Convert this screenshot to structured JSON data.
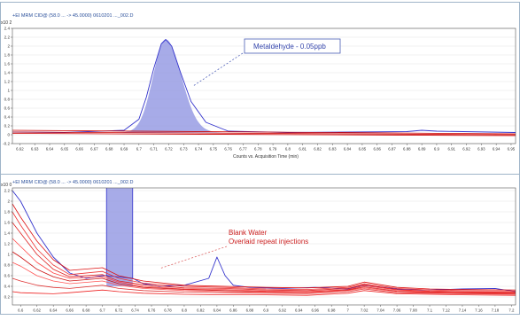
{
  "chart_data": [
    {
      "type": "area",
      "title": "+EI MRM CID@ (58.0 ... -> 45.0000) 0610201 ..._002.D",
      "xlabel": "Counts vs. Acquisition Time (min)",
      "ylabel": "",
      "y_multiplier": "x10 2",
      "ylim": [
        -0.2,
        2.4
      ],
      "xlim": [
        6.615,
        6.953
      ],
      "y_ticks": [
        "-0.2",
        "0",
        "0.2",
        "0.4",
        "0.6",
        "0.8",
        "1",
        "1.2",
        "1.4",
        "1.6",
        "1.8",
        "2",
        "2.2",
        "2.4"
      ],
      "x_ticks": [
        "6.62",
        "6.63",
        "6.64",
        "6.65",
        "6.66",
        "6.67",
        "6.68",
        "6.69",
        "6.7",
        "6.71",
        "6.72",
        "6.73",
        "6.74",
        "6.75",
        "6.76",
        "6.77",
        "6.78",
        "6.79",
        "6.8",
        "6.81",
        "6.82",
        "6.83",
        "6.84",
        "6.85",
        "6.86",
        "6.87",
        "6.88",
        "6.89",
        "6.9",
        "6.91",
        "6.92",
        "6.93",
        "6.94",
        "6.95"
      ],
      "annotation": "Metaldehyde - 0.05ppb",
      "peak": {
        "apex_x": 6.718,
        "apex_y": 2.15,
        "sigma_left": 0.0085,
        "sigma_right": 0.0105,
        "baseline": 0.05
      },
      "series": [
        {
          "color": "#3333cc",
          "role": "standard peak",
          "x": [
            6.615,
            6.65,
            6.69,
            6.7,
            6.705,
            6.71,
            6.715,
            6.718,
            6.722,
            6.728,
            6.735,
            6.745,
            6.76,
            6.8,
            6.88,
            6.89,
            6.9,
            6.953
          ],
          "y": [
            0.06,
            0.05,
            0.1,
            0.35,
            0.85,
            1.5,
            2.05,
            2.15,
            2.0,
            1.4,
            0.75,
            0.28,
            0.08,
            0.05,
            0.07,
            0.1,
            0.08,
            0.05
          ]
        },
        {
          "color": "#cc0000",
          "role": "blank baseline",
          "x": [
            6.615,
            6.953
          ],
          "y": [
            0.1,
            0.02
          ]
        },
        {
          "color": "#cc0000",
          "role": "blank baseline",
          "x": [
            6.615,
            6.953
          ],
          "y": [
            0.06,
            0.0
          ]
        },
        {
          "color": "#cc0000",
          "role": "blank baseline",
          "x": [
            6.615,
            6.953
          ],
          "y": [
            0.03,
            -0.02
          ]
        }
      ]
    },
    {
      "type": "line",
      "title": "+EI MRM CID@ (58.0 ... -> 45.0000) 0610201 ..._002.D",
      "xlabel": "",
      "ylabel": "",
      "y_multiplier": "x10 0",
      "ylim": [
        0.05,
        2.25
      ],
      "xlim": [
        6.59,
        7.205
      ],
      "y_ticks": [
        "0.2",
        "0.4",
        "0.6",
        "0.8",
        "1",
        "1.2",
        "1.4",
        "1.6",
        "1.8",
        "2",
        "2.2"
      ],
      "x_ticks": [
        "6.6",
        "6.62",
        "6.64",
        "6.66",
        "6.68",
        "6.7",
        "6.72",
        "6.74",
        "6.76",
        "6.78",
        "6.8",
        "6.82",
        "6.84",
        "6.86",
        "6.88",
        "6.9",
        "6.92",
        "6.94",
        "6.96",
        "6.98",
        "7",
        "7.02",
        "7.04",
        "7.06",
        "7.08",
        "7.1",
        "7.12",
        "7.14",
        "7.16",
        "7.18",
        "7.2"
      ],
      "annotation_lines": [
        "Blank Water",
        "Overlaid repeat injections"
      ],
      "clipped_peak": {
        "left_x": 6.705,
        "right_x": 6.737,
        "top_y": 2.25
      },
      "series": [
        {
          "color": "#3333cc",
          "role": "standard",
          "x": [
            6.59,
            6.6,
            6.62,
            6.64,
            6.66,
            6.68,
            6.7,
            6.705,
            6.737,
            6.75,
            6.77,
            6.8,
            6.83,
            6.84,
            6.85,
            6.86,
            6.88,
            6.92,
            6.96,
            7.0,
            7.02,
            7.06,
            7.1,
            7.14,
            7.18,
            7.205
          ],
          "y": [
            2.2,
            2.0,
            1.4,
            0.95,
            0.65,
            0.55,
            0.6,
            0.6,
            0.55,
            0.45,
            0.4,
            0.42,
            0.55,
            0.95,
            0.6,
            0.42,
            0.38,
            0.36,
            0.38,
            0.35,
            0.42,
            0.35,
            0.33,
            0.35,
            0.36,
            0.3
          ]
        },
        {
          "color": "#dd1111",
          "role": "blank",
          "x": [
            6.59,
            6.6,
            6.62,
            6.64,
            6.66,
            6.7,
            6.72,
            6.75,
            6.8,
            6.85,
            6.9,
            6.95,
            7.0,
            7.02,
            7.06,
            7.1,
            7.14,
            7.205
          ],
          "y": [
            1.95,
            1.7,
            1.25,
            0.9,
            0.7,
            0.75,
            0.6,
            0.5,
            0.42,
            0.4,
            0.38,
            0.37,
            0.4,
            0.48,
            0.38,
            0.35,
            0.34,
            0.33
          ]
        },
        {
          "color": "#ee3333",
          "role": "blank",
          "x": [
            6.59,
            6.6,
            6.62,
            6.64,
            6.66,
            6.7,
            6.72,
            6.75,
            6.8,
            6.85,
            6.9,
            6.95,
            7.0,
            7.02,
            7.06,
            7.1,
            7.14,
            7.205
          ],
          "y": [
            1.8,
            1.55,
            1.1,
            0.8,
            0.62,
            0.68,
            0.55,
            0.46,
            0.4,
            0.38,
            0.35,
            0.34,
            0.38,
            0.45,
            0.36,
            0.33,
            0.32,
            0.31
          ]
        },
        {
          "color": "#dd2222",
          "role": "blank",
          "x": [
            6.59,
            6.6,
            6.62,
            6.64,
            6.66,
            6.7,
            6.72,
            6.75,
            6.8,
            6.85,
            6.9,
            6.95,
            7.0,
            7.02,
            7.06,
            7.1,
            7.14,
            7.205
          ],
          "y": [
            1.6,
            1.4,
            1.0,
            0.72,
            0.58,
            0.62,
            0.5,
            0.43,
            0.37,
            0.36,
            0.33,
            0.32,
            0.36,
            0.43,
            0.34,
            0.31,
            0.3,
            0.29
          ]
        },
        {
          "color": "#ff4444",
          "role": "blank",
          "x": [
            6.59,
            6.6,
            6.62,
            6.64,
            6.66,
            6.7,
            6.72,
            6.75,
            6.8,
            6.85,
            6.9,
            6.95,
            7.0,
            7.02,
            7.06,
            7.1,
            7.14,
            7.205
          ],
          "y": [
            1.3,
            1.15,
            0.85,
            0.65,
            0.55,
            0.58,
            0.48,
            0.4,
            0.35,
            0.34,
            0.31,
            0.3,
            0.34,
            0.41,
            0.33,
            0.3,
            0.29,
            0.28
          ]
        },
        {
          "color": "#cc1111",
          "role": "blank",
          "x": [
            6.59,
            6.6,
            6.62,
            6.64,
            6.66,
            6.7,
            6.72,
            6.75,
            6.8,
            6.85,
            6.9,
            6.95,
            7.0,
            7.02,
            7.06,
            7.1,
            7.14,
            7.205
          ],
          "y": [
            1.05,
            0.95,
            0.72,
            0.58,
            0.5,
            0.55,
            0.45,
            0.38,
            0.34,
            0.32,
            0.3,
            0.29,
            0.33,
            0.39,
            0.31,
            0.29,
            0.28,
            0.27
          ]
        },
        {
          "color": "#ff5555",
          "role": "blank",
          "x": [
            6.59,
            6.6,
            6.62,
            6.64,
            6.66,
            6.7,
            6.72,
            6.75,
            6.8,
            6.85,
            6.9,
            6.95,
            7.0,
            7.02,
            7.06,
            7.1,
            7.14,
            7.205
          ],
          "y": [
            0.85,
            0.78,
            0.6,
            0.5,
            0.45,
            0.5,
            0.42,
            0.36,
            0.32,
            0.3,
            0.29,
            0.28,
            0.32,
            0.37,
            0.3,
            0.28,
            0.27,
            0.26
          ]
        },
        {
          "color": "#dd3333",
          "role": "blank",
          "x": [
            6.59,
            6.6,
            6.62,
            6.64,
            6.66,
            6.7,
            6.72,
            6.75,
            6.8,
            6.85,
            6.9,
            6.95,
            7.0,
            7.02,
            7.06,
            7.1,
            7.14,
            7.205
          ],
          "y": [
            0.55,
            0.5,
            0.42,
            0.38,
            0.36,
            0.42,
            0.36,
            0.32,
            0.29,
            0.28,
            0.27,
            0.26,
            0.3,
            0.35,
            0.28,
            0.27,
            0.26,
            0.25
          ]
        },
        {
          "color": "#ee2222",
          "role": "blank",
          "x": [
            6.59,
            6.6,
            6.62,
            6.64,
            6.66,
            6.7,
            6.72,
            6.75,
            6.8,
            6.85,
            6.9,
            6.95,
            7.0,
            7.02,
            7.06,
            7.1,
            7.14,
            7.205
          ],
          "y": [
            0.3,
            0.28,
            0.27,
            0.26,
            0.28,
            0.33,
            0.3,
            0.27,
            0.25,
            0.24,
            0.24,
            0.23,
            0.27,
            0.32,
            0.26,
            0.25,
            0.24,
            0.23
          ]
        }
      ]
    }
  ]
}
